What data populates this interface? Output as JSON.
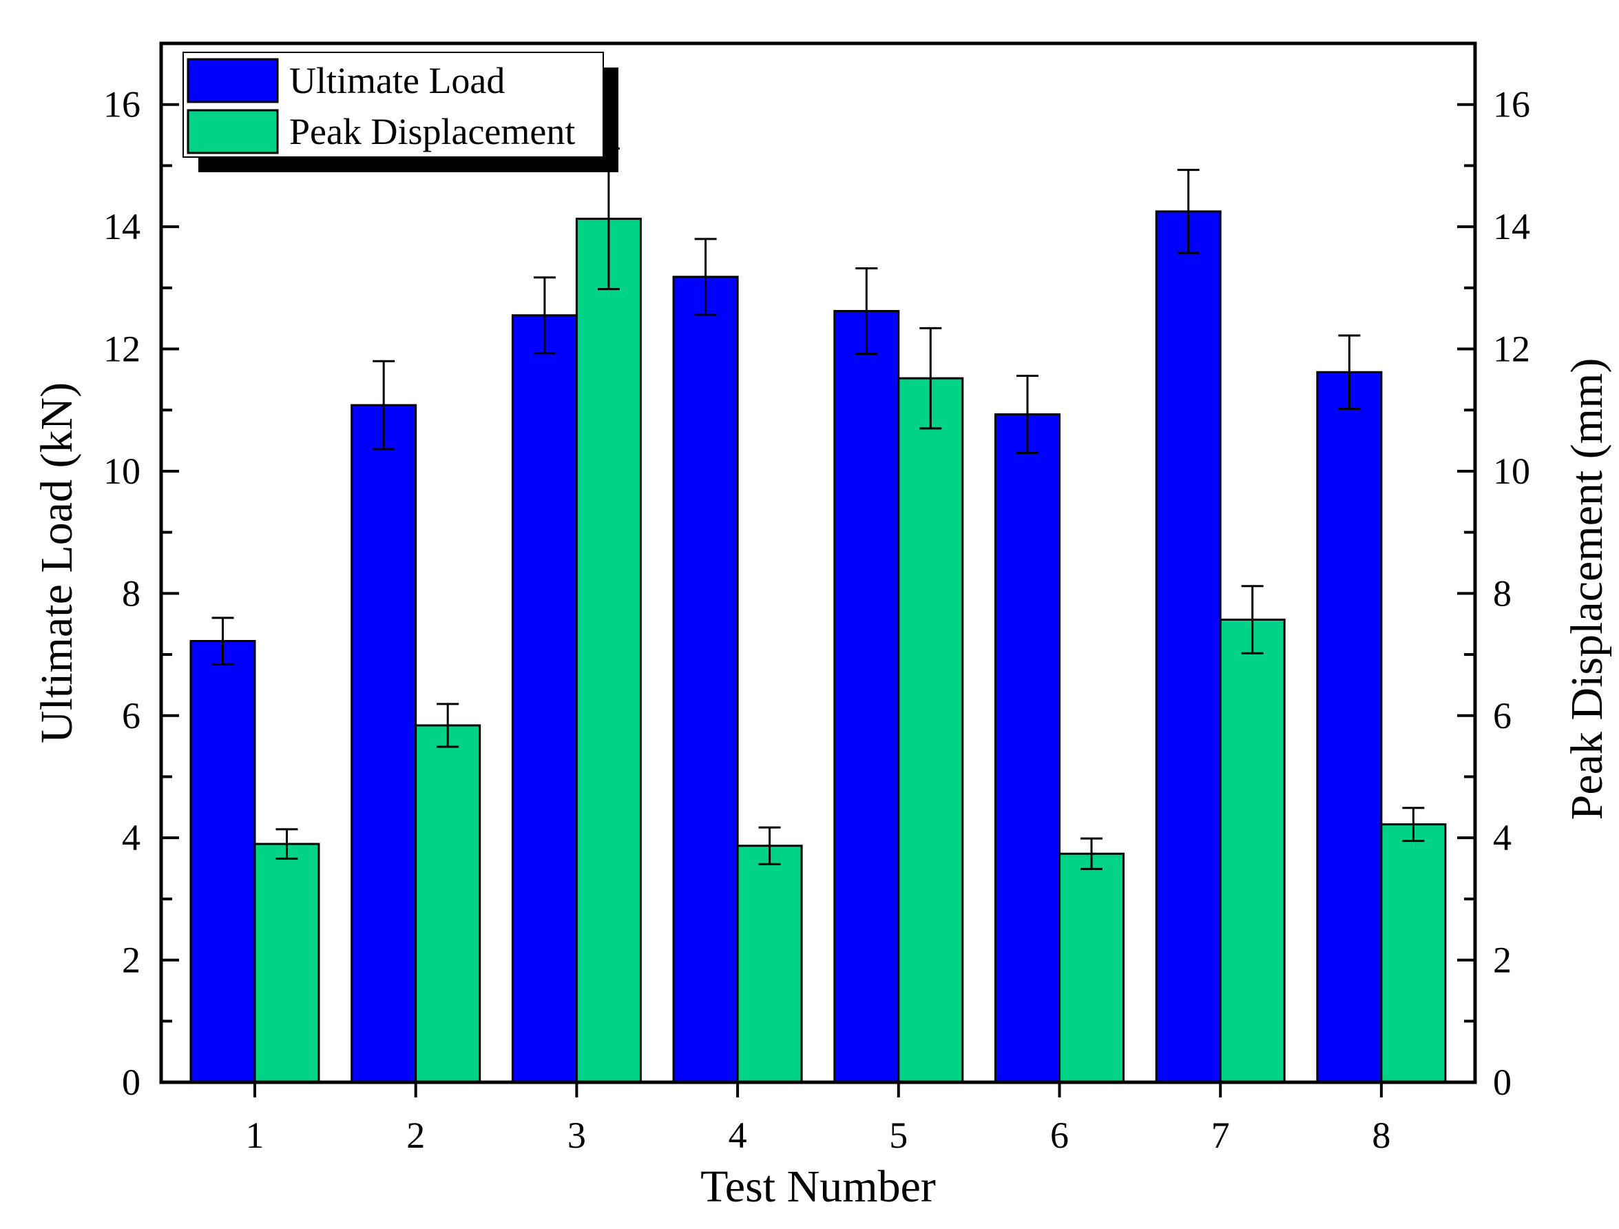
{
  "chart_data": {
    "type": "bar",
    "xlabel": "Test Number",
    "ylabel_left": "Ultimate Load (kN)",
    "ylabel_right": "Peak Displacement (mm)",
    "categories": [
      "1",
      "2",
      "3",
      "4",
      "5",
      "6",
      "7",
      "8"
    ],
    "ylim": [
      0,
      17
    ],
    "yticks": [
      "0",
      "2",
      "4",
      "6",
      "8",
      "10",
      "12",
      "14",
      "16"
    ],
    "grid": false,
    "legend_position": "top-left",
    "series": [
      {
        "name": "Ultimate Load",
        "axis": "left",
        "color": "#0000FF",
        "values": [
          7.22,
          11.08,
          12.55,
          13.18,
          12.62,
          10.93,
          14.25,
          11.62
        ],
        "errors": [
          0.38,
          0.72,
          0.62,
          0.62,
          0.7,
          0.63,
          0.68,
          0.6
        ]
      },
      {
        "name": "Peak Displacement",
        "axis": "right",
        "color": "#00D387",
        "values": [
          3.9,
          5.84,
          14.13,
          3.87,
          11.52,
          3.74,
          7.57,
          4.22
        ],
        "errors": [
          0.24,
          0.35,
          1.15,
          0.3,
          0.82,
          0.25,
          0.55,
          0.27
        ]
      }
    ]
  }
}
